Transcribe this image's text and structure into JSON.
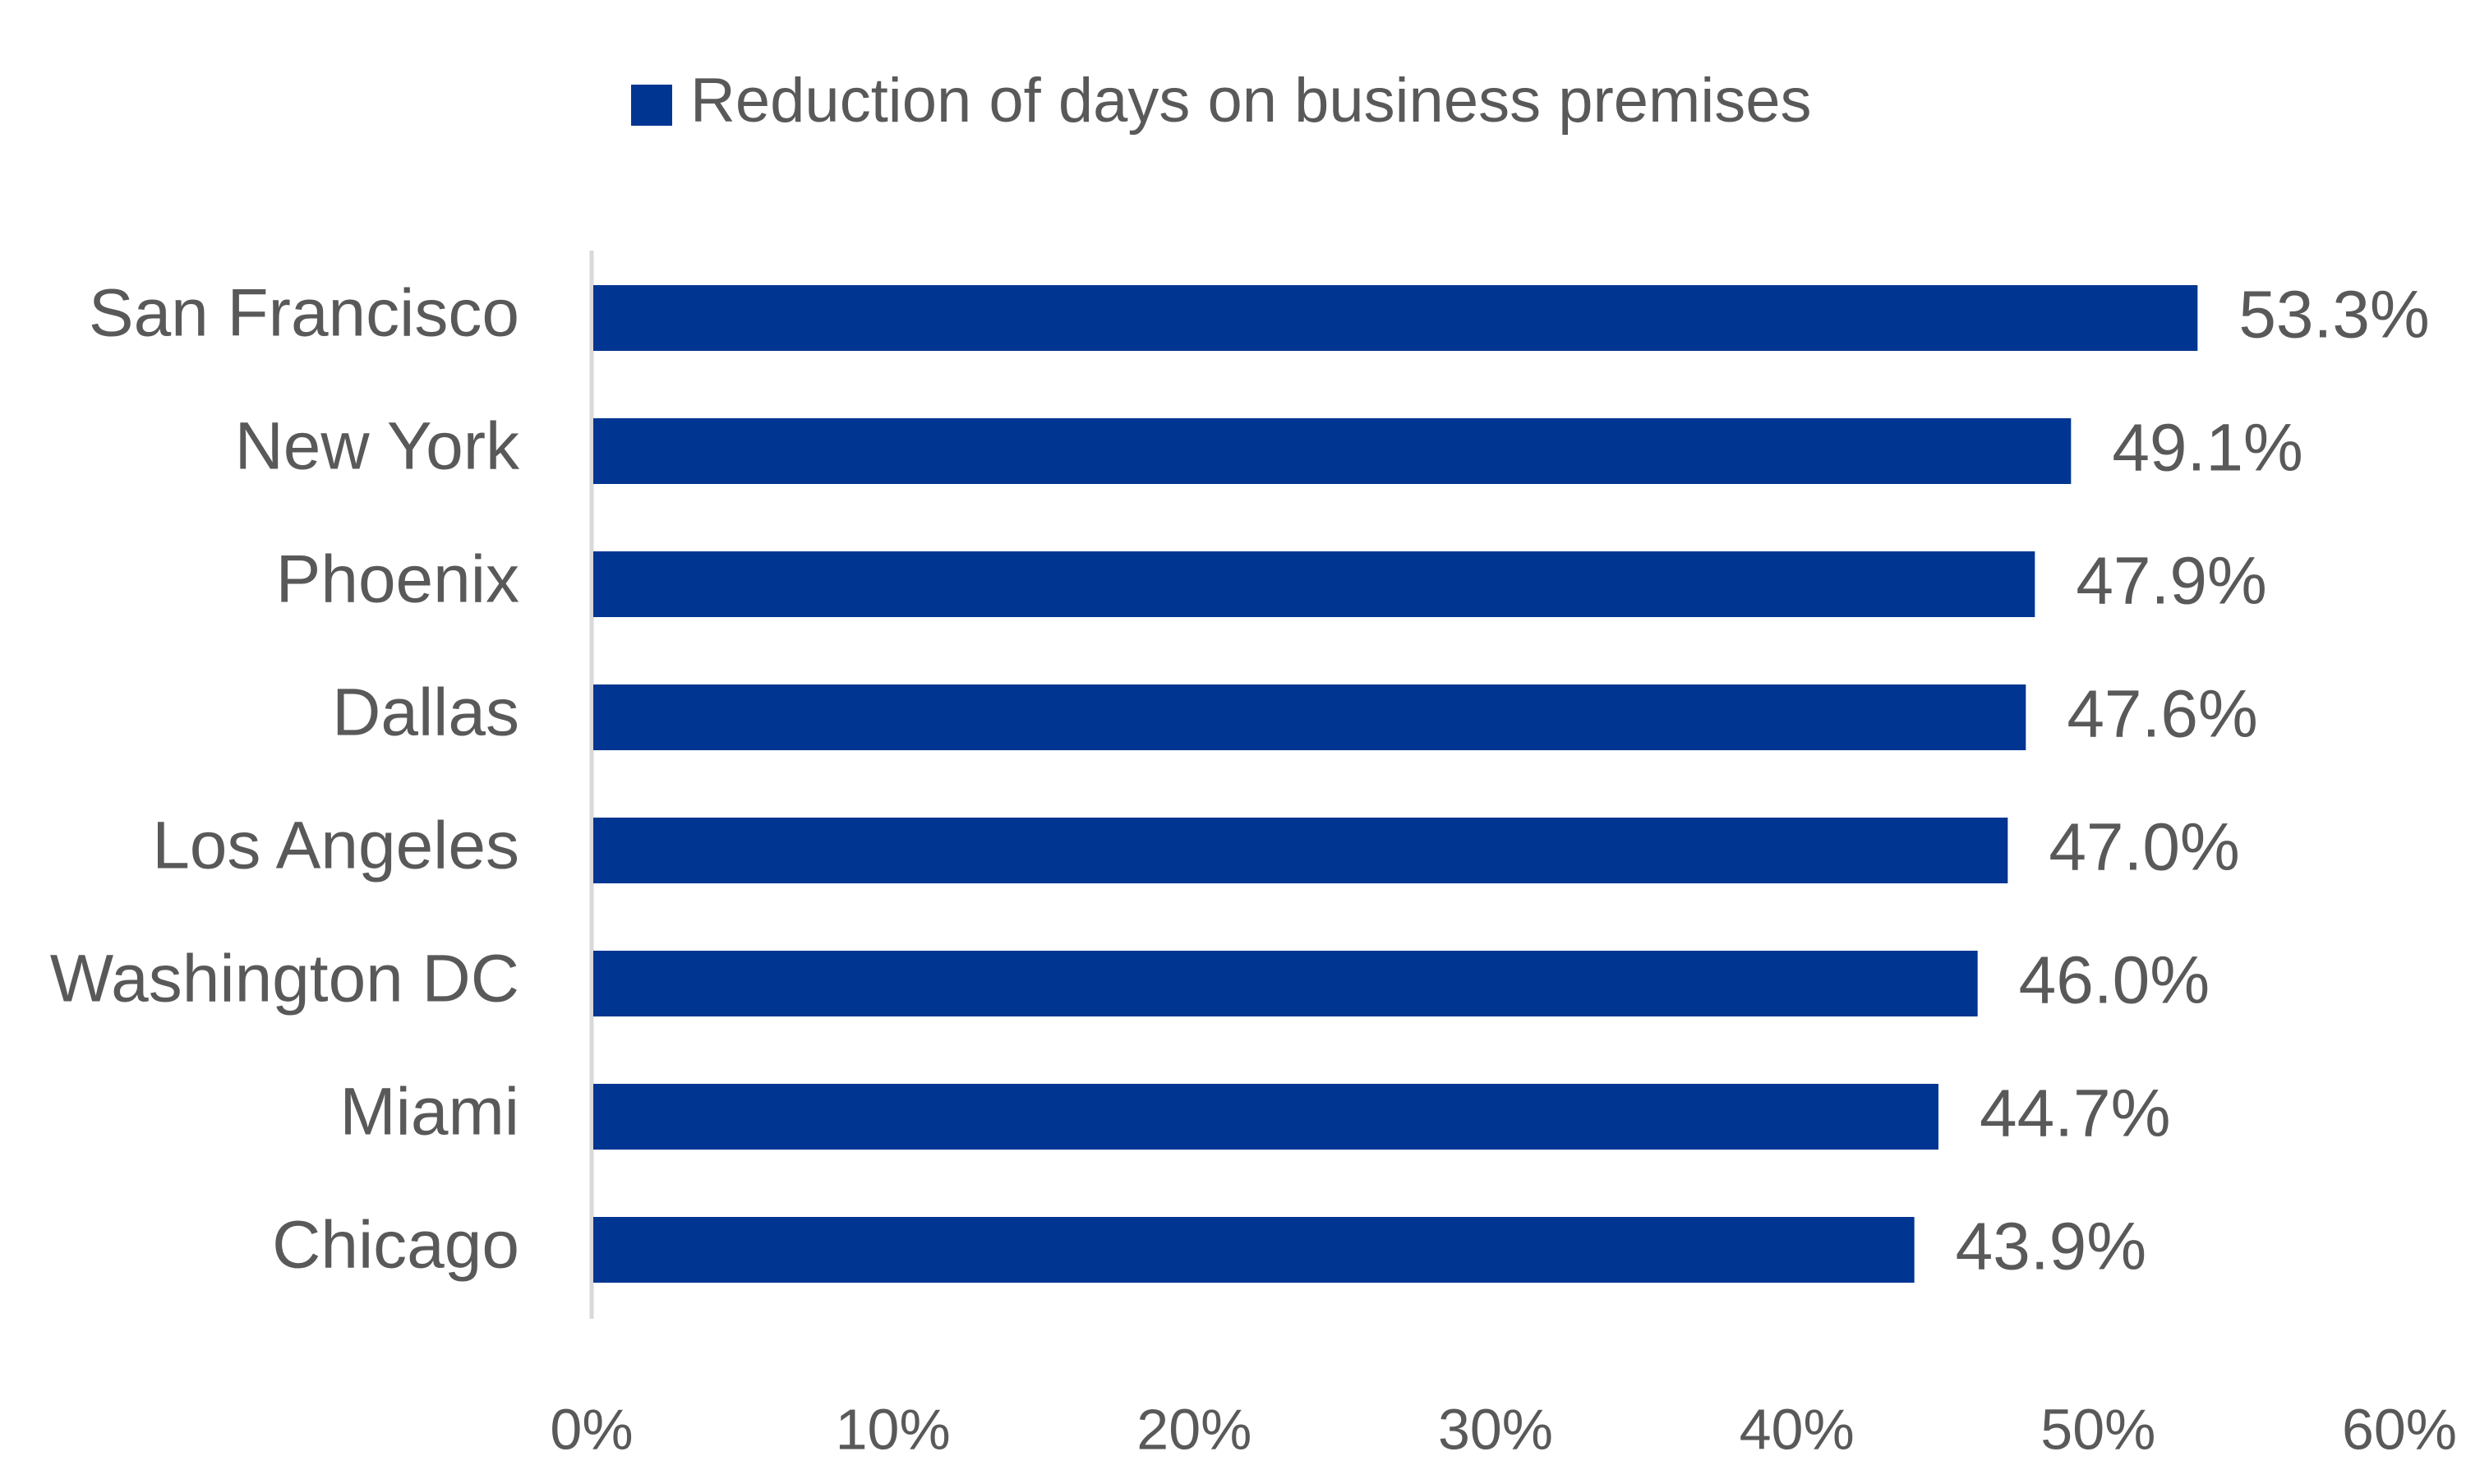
{
  "chart_data": {
    "type": "bar",
    "orientation": "horizontal",
    "categories": [
      "San Francisco",
      "New York",
      "Phoenix",
      "Dallas",
      "Los Angeles",
      "Washington DC",
      "Miami",
      "Chicago"
    ],
    "series": [
      {
        "name": "Reduction of days on business premises",
        "values": [
          53.3,
          49.1,
          47.9,
          47.6,
          47.0,
          46.0,
          44.7,
          43.9
        ],
        "labels": [
          "53.3%",
          "49.1%",
          "47.9%",
          "47.6%",
          "47.0%",
          "46.0%",
          "44.7%",
          "43.9%"
        ],
        "color": "#003591"
      }
    ],
    "xlim": [
      0,
      60
    ],
    "x_ticks": [
      0,
      10,
      20,
      30,
      40,
      50,
      60
    ],
    "x_tick_labels": [
      "0%",
      "10%",
      "20%",
      "30%",
      "40%",
      "50%",
      "60%"
    ],
    "grid": false,
    "legend_position": "top-center",
    "axis_color": "#d9d9d9",
    "text_color": "#595959"
  }
}
